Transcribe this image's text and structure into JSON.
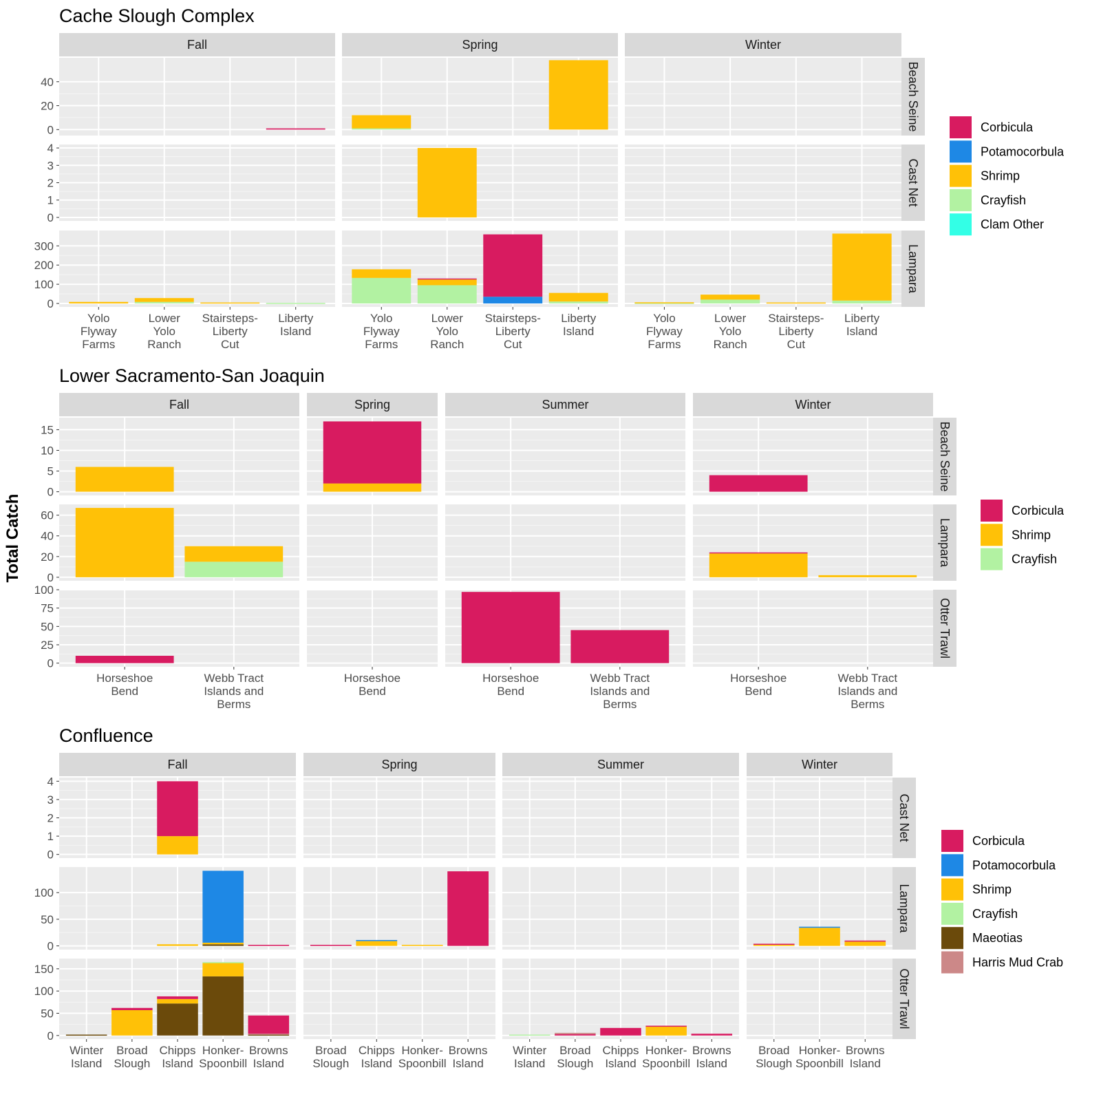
{
  "ylabel": "Total Catch",
  "colors": {
    "Corbicula": "#d81b60",
    "Potamocorbula": "#1e88e5",
    "Shrimp": "#ffc107",
    "Crayfish": "#b2f2a2",
    "Clam Other": "#33ffe6",
    "Maeotias": "#6b4a0b",
    "Harris Mud Crab": "#cc8888"
  },
  "chart_data": [
    {
      "type": "bar",
      "stacked": true,
      "title": "Cache Slough Complex",
      "columns": [
        "Fall",
        "Spring",
        "Winter"
      ],
      "rows": [
        "Beach Seine",
        "Cast Net",
        "Lampara"
      ],
      "categories": [
        "Yolo\nFlyway\nFarms",
        "Lower\nYolo\nRanch",
        "Stairsteps-\nLiberty\nCut",
        "Liberty\nIsland"
      ],
      "legend": [
        "Corbicula",
        "Potamocorbula",
        "Shrimp",
        "Crayfish",
        "Clam Other"
      ],
      "row_axes": [
        {
          "ylim": [
            -5,
            60
          ],
          "ticks": [
            0,
            20,
            40
          ]
        },
        {
          "ylim": [
            -0.2,
            4.2
          ],
          "ticks": [
            0,
            1,
            2,
            3,
            4
          ]
        },
        {
          "ylim": [
            -18,
            380
          ],
          "ticks": [
            0,
            100,
            200,
            300
          ]
        }
      ],
      "panels": [
        {
          "col": 0,
          "row": 0,
          "bars": [
            {
              "x": 3,
              "stack": {
                "Corbicula": 1
              }
            }
          ]
        },
        {
          "col": 1,
          "row": 0,
          "bars": [
            {
              "x": 0,
              "stack": {
                "Crayfish": 1,
                "Shrimp": 11
              }
            },
            {
              "x": 3,
              "stack": {
                "Shrimp": 58
              }
            }
          ]
        },
        {
          "col": 1,
          "row": 1,
          "bars": [
            {
              "x": 1,
              "stack": {
                "Shrimp": 4
              }
            }
          ]
        },
        {
          "col": 0,
          "row": 2,
          "bars": [
            {
              "x": 0,
              "stack": {
                "Shrimp": 8
              }
            },
            {
              "x": 1,
              "stack": {
                "Crayfish": 8,
                "Shrimp": 20
              }
            },
            {
              "x": 2,
              "stack": {
                "Shrimp": 5
              }
            },
            {
              "x": 3,
              "stack": {
                "Crayfish": 3
              }
            }
          ]
        },
        {
          "col": 1,
          "row": 2,
          "bars": [
            {
              "x": 0,
              "stack": {
                "Crayfish": 133,
                "Shrimp": 45
              }
            },
            {
              "x": 1,
              "stack": {
                "Crayfish": 95,
                "Shrimp": 30,
                "Corbicula": 5
              }
            },
            {
              "x": 2,
              "stack": {
                "Potamocorbula": 35,
                "Corbicula": 325
              }
            },
            {
              "x": 3,
              "stack": {
                "Crayfish": 10,
                "Shrimp": 45
              }
            }
          ]
        },
        {
          "col": 2,
          "row": 2,
          "bars": [
            {
              "x": 0,
              "stack": {
                "Crayfish": 3,
                "Shrimp": 3
              }
            },
            {
              "x": 1,
              "stack": {
                "Crayfish": 20,
                "Shrimp": 26
              }
            },
            {
              "x": 2,
              "stack": {
                "Shrimp": 5
              }
            },
            {
              "x": 3,
              "stack": {
                "Crayfish": 15,
                "Shrimp": 349
              }
            }
          ]
        }
      ]
    },
    {
      "type": "bar",
      "stacked": true,
      "title": "Lower Sacramento-San Joaquin",
      "columns": [
        "Fall",
        "Spring",
        "Summer",
        "Winter"
      ],
      "rows": [
        "Beach Seine",
        "Lampara",
        "Otter Trawl"
      ],
      "categories_by_column": [
        [
          "Horseshoe\nBend",
          "Webb Tract\nIslands and\nBerms"
        ],
        [
          "Horseshoe\nBend"
        ],
        [
          "Horseshoe\nBend",
          "Webb Tract\nIslands and\nBerms"
        ],
        [
          "Horseshoe\nBend",
          "Webb Tract\nIslands and\nBerms"
        ]
      ],
      "legend": [
        "Corbicula",
        "Shrimp",
        "Crayfish"
      ],
      "row_axes": [
        {
          "ylim": [
            -0.9,
            17.9
          ],
          "ticks": [
            0,
            5,
            10,
            15
          ]
        },
        {
          "ylim": [
            -3.4,
            70.4
          ],
          "ticks": [
            0,
            20,
            40,
            60
          ]
        },
        {
          "ylim": [
            -5,
            100
          ],
          "ticks": [
            0,
            25,
            50,
            75,
            100
          ]
        }
      ],
      "panels": [
        {
          "col": 0,
          "row": 0,
          "bars": [
            {
              "x": 0,
              "stack": {
                "Shrimp": 6
              }
            }
          ]
        },
        {
          "col": 1,
          "row": 0,
          "bars": [
            {
              "x": 0,
              "stack": {
                "Shrimp": 2,
                "Corbicula": 15
              }
            }
          ]
        },
        {
          "col": 3,
          "row": 0,
          "bars": [
            {
              "x": 0,
              "stack": {
                "Corbicula": 4
              }
            }
          ]
        },
        {
          "col": 0,
          "row": 1,
          "bars": [
            {
              "x": 0,
              "stack": {
                "Shrimp": 67
              }
            },
            {
              "x": 1,
              "stack": {
                "Crayfish": 15,
                "Shrimp": 15
              }
            }
          ]
        },
        {
          "col": 3,
          "row": 1,
          "bars": [
            {
              "x": 0,
              "stack": {
                "Shrimp": 23,
                "Corbicula": 1
              }
            },
            {
              "x": 1,
              "stack": {
                "Shrimp": 2
              }
            }
          ]
        },
        {
          "col": 0,
          "row": 2,
          "bars": [
            {
              "x": 0,
              "stack": {
                "Corbicula": 10
              }
            }
          ]
        },
        {
          "col": 2,
          "row": 2,
          "bars": [
            {
              "x": 0,
              "stack": {
                "Corbicula": 97
              }
            },
            {
              "x": 1,
              "stack": {
                "Corbicula": 45
              }
            }
          ]
        }
      ]
    },
    {
      "type": "bar",
      "stacked": true,
      "title": "Confluence",
      "columns": [
        "Fall",
        "Spring",
        "Summer",
        "Winter"
      ],
      "rows": [
        "Cast Net",
        "Lampara",
        "Otter Trawl"
      ],
      "categories_by_column": [
        [
          "Winter\nIsland",
          "Broad\nSlough",
          "Chipps\nIsland",
          "Honker-\nSpoonbill",
          "Browns\nIsland"
        ],
        [
          "Broad\nSlough",
          "Chipps\nIsland",
          "Honker-\nSpoonbill",
          "Browns\nIsland"
        ],
        [
          "Winter\nIsland",
          "Broad\nSlough",
          "Chipps\nIsland",
          "Honker-\nSpoonbill",
          "Browns\nIsland"
        ],
        [
          "Broad\nSlough",
          "Honker-\nSpoonbill",
          "Browns\nIsland"
        ]
      ],
      "legend": [
        "Corbicula",
        "Potamocorbula",
        "Shrimp",
        "Crayfish",
        "Maeotias",
        "Harris Mud Crab"
      ],
      "row_axes": [
        {
          "ylim": [
            -0.2,
            4.2
          ],
          "ticks": [
            0,
            1,
            2,
            3,
            4
          ]
        },
        {
          "ylim": [
            -7,
            148
          ],
          "ticks": [
            0,
            50,
            100
          ]
        },
        {
          "ylim": [
            -8,
            173
          ],
          "ticks": [
            0,
            50,
            100,
            150
          ]
        }
      ],
      "panels": [
        {
          "col": 0,
          "row": 0,
          "bars": [
            {
              "x": 2,
              "stack": {
                "Shrimp": 1,
                "Corbicula": 3
              }
            }
          ]
        },
        {
          "col": 0,
          "row": 1,
          "bars": [
            {
              "x": 2,
              "stack": {
                "Shrimp": 3
              }
            },
            {
              "x": 3,
              "stack": {
                "Maeotias": 3,
                "Shrimp": 3,
                "Potamocorbula": 135
              }
            },
            {
              "x": 4,
              "stack": {
                "Corbicula": 2
              }
            }
          ]
        },
        {
          "col": 1,
          "row": 1,
          "bars": [
            {
              "x": 0,
              "stack": {
                "Corbicula": 2
              }
            },
            {
              "x": 1,
              "stack": {
                "Shrimp": 9,
                "Potamocorbula": 2
              }
            },
            {
              "x": 2,
              "stack": {
                "Shrimp": 2
              }
            },
            {
              "x": 3,
              "stack": {
                "Corbicula": 140
              }
            }
          ]
        },
        {
          "col": 3,
          "row": 1,
          "bars": [
            {
              "x": 0,
              "stack": {
                "Shrimp": 3,
                "Corbicula": 1
              }
            },
            {
              "x": 1,
              "stack": {
                "Shrimp": 34,
                "Potamocorbula": 2
              }
            },
            {
              "x": 2,
              "stack": {
                "Shrimp": 8,
                "Corbicula": 2
              }
            }
          ]
        },
        {
          "col": 0,
          "row": 2,
          "bars": [
            {
              "x": 0,
              "stack": {
                "Maeotias": 2
              }
            },
            {
              "x": 1,
              "stack": {
                "Shrimp": 57,
                "Corbicula": 5
              }
            },
            {
              "x": 2,
              "stack": {
                "Maeotias": 72,
                "Shrimp": 10,
                "Corbicula": 6
              }
            },
            {
              "x": 3,
              "stack": {
                "Maeotias": 133,
                "Shrimp": 30,
                "Crayfish": 2
              }
            },
            {
              "x": 4,
              "stack": {
                "Maeotias": 2,
                "Harris Mud Crab": 2,
                "Corbicula": 41
              }
            }
          ]
        },
        {
          "col": 2,
          "row": 2,
          "bars": [
            {
              "x": 0,
              "stack": {
                "Crayfish": 2
              }
            },
            {
              "x": 1,
              "stack": {
                "Corbicula": 3,
                "Harris Mud Crab": 3
              }
            },
            {
              "x": 2,
              "stack": {
                "Corbicula": 17
              }
            },
            {
              "x": 3,
              "stack": {
                "Shrimp": 20,
                "Corbicula": 2
              }
            },
            {
              "x": 4,
              "stack": {
                "Corbicula": 4
              }
            }
          ]
        }
      ]
    }
  ]
}
